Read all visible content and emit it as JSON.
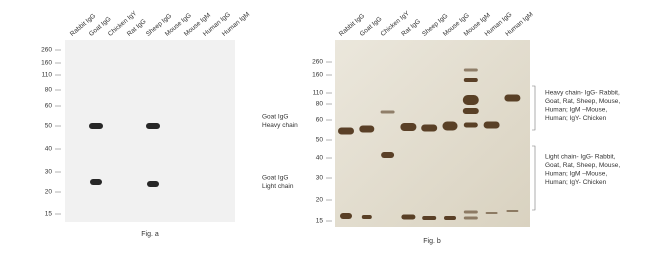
{
  "figure_a": {
    "lanes": [
      "Rabbit IgG",
      "Goat IgG",
      "Chicken IgY",
      "Rat IgG",
      "Sheep IgG",
      "Mouse IgG",
      "Mouse IgM",
      "Human IgG",
      "Human IgM"
    ],
    "markers": [
      260,
      160,
      110,
      80,
      60,
      50,
      40,
      30,
      20,
      15
    ],
    "annotations": [
      [
        "Goat IgG",
        "Heavy chain"
      ],
      [
        "Goat IgG",
        "Light chain"
      ]
    ],
    "caption": "Fig. a"
  },
  "figure_b": {
    "lanes": [
      "Rabbit IgG",
      "Goat IgG",
      "Chicken IgY",
      "Rat IgG",
      "Sheep IgG",
      "Mouse IgG",
      "Mouse IgM",
      "Human IgG",
      "Human IgM"
    ],
    "markers": [
      260,
      160,
      110,
      80,
      60,
      50,
      40,
      30,
      20,
      15
    ],
    "annotations": [
      [
        "Heavy chain- IgG- Rabbit,",
        "Goat, Rat, Sheep, Mouse,",
        "Human; IgM –Mouse,",
        "Human; IgY- Chicken"
      ],
      [
        "Light chain- IgG- Rabbit,",
        "Goat, Rat, Sheep, Mouse,",
        "Human; IgM –Mouse,",
        "Human; IgY- Chicken"
      ]
    ],
    "caption": "Fig. b"
  }
}
